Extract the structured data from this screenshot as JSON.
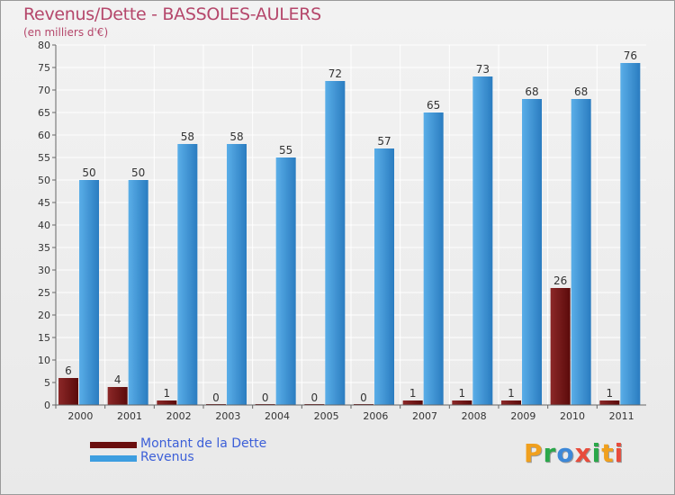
{
  "title": "Revenus/Dette - BASSOLES-AULERS",
  "subtitle": "(en milliers d'€)",
  "legend": [
    {
      "label": "Montant de la Dette",
      "color": "#6b0f0f"
    },
    {
      "label": "Revenus",
      "color": "#3d9ee0"
    }
  ],
  "logo": {
    "text": "Proxiti",
    "colors": [
      "#f0a01e",
      "#2aa84a",
      "#3c88d8",
      "#e84c3c",
      "#2aa84a",
      "#f0a01e",
      "#e84c3c"
    ]
  },
  "colors": {
    "debt_top": "#8c2828",
    "debt_bottom": "#5a0a0a",
    "rev_light": "#5aaee8",
    "rev_dark": "#2a7cc0",
    "grid": "#ffffff",
    "axis": "#666666"
  },
  "chart_data": {
    "type": "bar",
    "categories": [
      "2000",
      "2001",
      "2002",
      "2003",
      "2004",
      "2005",
      "2006",
      "2007",
      "2008",
      "2009",
      "2010",
      "2011"
    ],
    "series": [
      {
        "name": "Montant de la Dette",
        "values": [
          6,
          4,
          1,
          0,
          0,
          0,
          0,
          1,
          1,
          1,
          26,
          1
        ]
      },
      {
        "name": "Revenus",
        "values": [
          50,
          50,
          58,
          58,
          55,
          72,
          57,
          65,
          73,
          68,
          68,
          76
        ]
      }
    ],
    "yticks": [
      0,
      5,
      10,
      15,
      20,
      25,
      30,
      35,
      40,
      45,
      50,
      55,
      60,
      65,
      70,
      75,
      80
    ],
    "ylim": [
      0,
      80
    ],
    "title": "Revenus/Dette - BASSOLES-AULERS",
    "ylabel": "(en milliers d'€)",
    "xlabel": ""
  }
}
